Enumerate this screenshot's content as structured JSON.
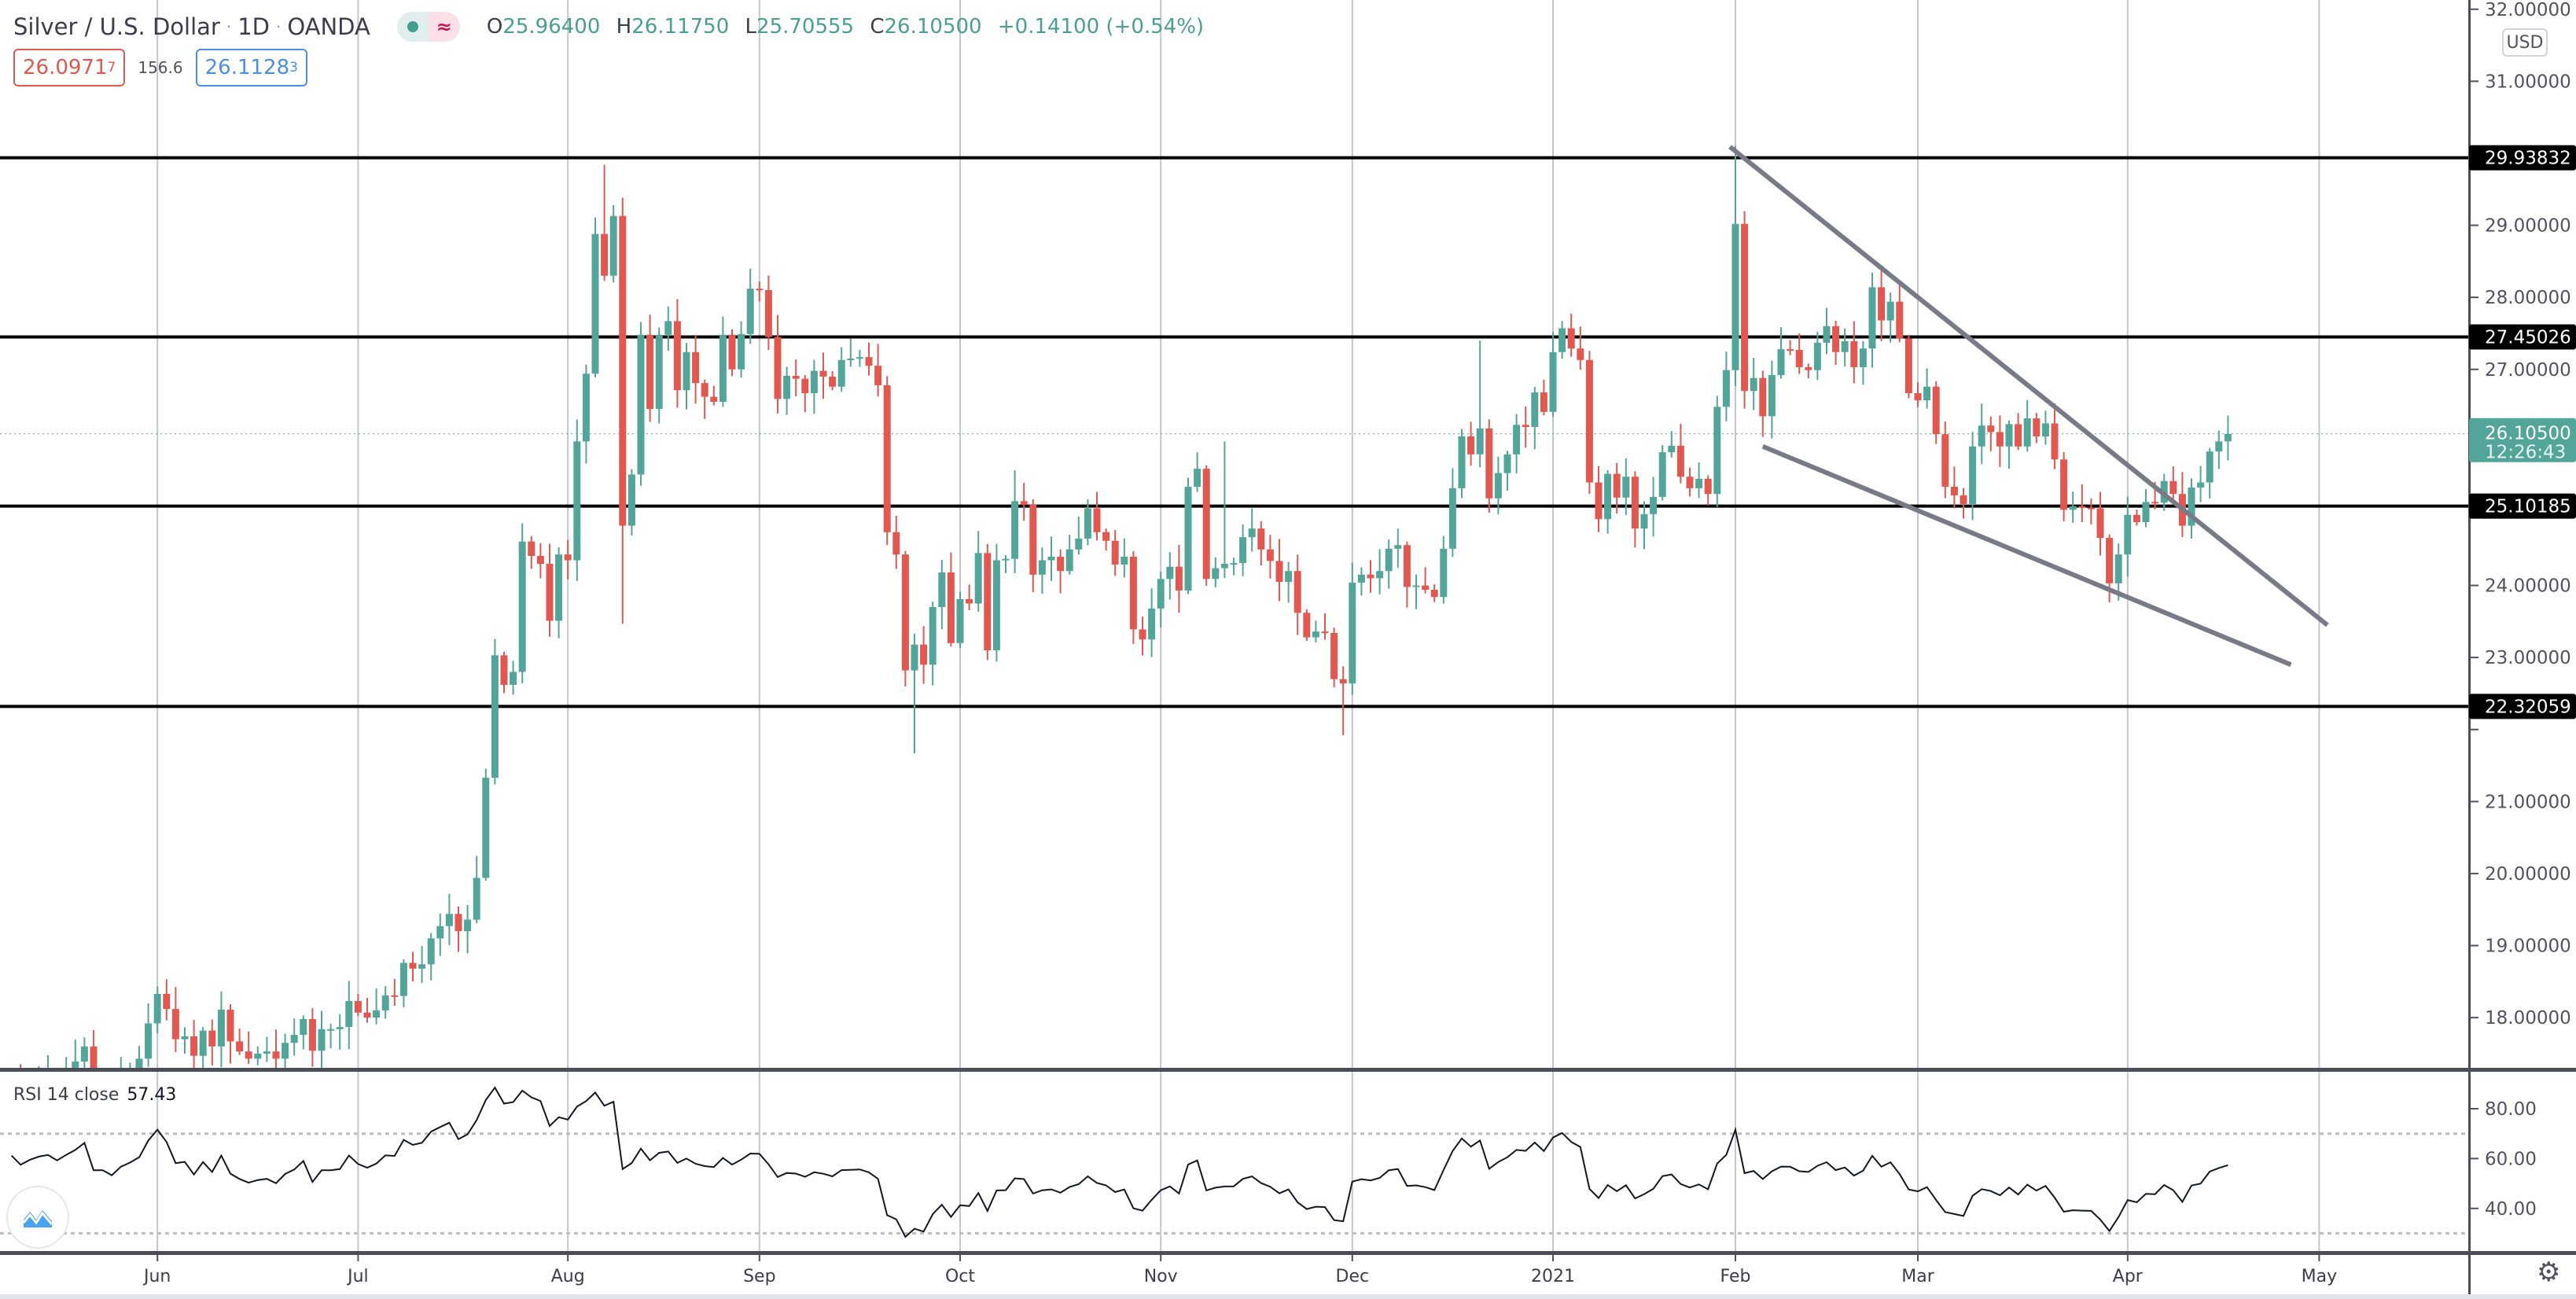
{
  "header": {
    "title": "Silver / U.S. Dollar",
    "interval": "1D",
    "source": "OANDA",
    "separator": "·",
    "status_glyph": "≈",
    "o_label": "O",
    "o": "25.96400",
    "h_label": "H",
    "h": "26.11750",
    "l_label": "L",
    "l": "25.70555",
    "c_label": "C",
    "c": "26.10500",
    "change": "+0.14100 (+0.54%)"
  },
  "quote": {
    "sell_main": "26.0971",
    "sell_pip": "7",
    "spread": "156.6",
    "buy_main": "26.1128",
    "buy_pip": "3"
  },
  "price_axis": {
    "currency": "USD",
    "ticks": [
      18,
      19,
      20,
      21,
      22,
      23,
      24,
      25,
      26,
      27,
      28,
      29,
      30,
      31,
      32
    ],
    "levels": [
      {
        "value": 29.93832,
        "label": "29.93832"
      },
      {
        "value": 27.45026,
        "label": "27.45026"
      },
      {
        "value": 25.10185,
        "label": "25.10185"
      },
      {
        "value": 22.32059,
        "label": "22.32059"
      }
    ],
    "current": {
      "value": 26.105,
      "price": "26.10500",
      "countdown": "12:26:43"
    }
  },
  "time_axis": [
    {
      "label": "Jun",
      "bar": 17
    },
    {
      "label": "Jul",
      "bar": 39
    },
    {
      "label": "Aug",
      "bar": 62
    },
    {
      "label": "Sep",
      "bar": 83
    },
    {
      "label": "Oct",
      "bar": 105
    },
    {
      "label": "Nov",
      "bar": 127
    },
    {
      "label": "Dec",
      "bar": 148
    },
    {
      "label": "2021",
      "bar": 170
    },
    {
      "label": "Feb",
      "bar": 190
    },
    {
      "label": "Mar",
      "bar": 210
    },
    {
      "label": "Apr",
      "bar": 233
    },
    {
      "label": "May",
      "bar": 254
    }
  ],
  "rsi": {
    "title": "RSI 14 close",
    "value": "57.43",
    "ticks": [
      {
        "v": 80,
        "label": "80.00"
      },
      {
        "v": 60,
        "label": "60.00"
      },
      {
        "v": 40,
        "label": "40.00"
      }
    ],
    "upper": 70,
    "lower": 30
  },
  "colors": {
    "up": "#53a599",
    "down": "#e0584f",
    "level": "#000000",
    "trend": "#787b86",
    "grid": "#c3c6cf"
  },
  "chart_data": {
    "type": "candlestick",
    "title": "Silver / U.S. Dollar · 1D · OANDA",
    "ylim": [
      17,
      32
    ],
    "closes": [
      17.0,
      17.1,
      16.9,
      17.05,
      17.15,
      17.2,
      17.1,
      17.25,
      17.39,
      17.6,
      17.1,
      17.1,
      17.0,
      17.2,
      17.3,
      17.43,
      17.92,
      18.33,
      18.12,
      17.7,
      17.74,
      17.47,
      17.82,
      17.6,
      18.11,
      17.67,
      17.53,
      17.43,
      17.5,
      17.53,
      17.43,
      17.65,
      17.76,
      17.98,
      17.54,
      17.84,
      17.84,
      17.87,
      18.23,
      18.07,
      18.0,
      18.1,
      18.31,
      18.3,
      18.76,
      18.68,
      18.74,
      19.1,
      19.27,
      19.44,
      19.2,
      19.36,
      19.94,
      21.33,
      23.03,
      22.62,
      22.8,
      24.61,
      24.41,
      24.3,
      23.51,
      24.43,
      24.35,
      26.0,
      26.94,
      28.88,
      28.3,
      29.13,
      24.83,
      25.54,
      27.48,
      26.45,
      27.48,
      27.67,
      26.71,
      27.24,
      26.81,
      26.62,
      26.55,
      27.48,
      27.0,
      27.49,
      28.12,
      28.1,
      27.45,
      26.59,
      26.91,
      26.87,
      26.67,
      26.98,
      26.9,
      26.76,
      27.13,
      27.15,
      27.17,
      27.05,
      26.78,
      24.74,
      24.43,
      22.82,
      23.18,
      22.9,
      23.7,
      24.18,
      23.2,
      23.81,
      23.75,
      24.45,
      23.1,
      24.35,
      24.37,
      25.17,
      25.12,
      24.15,
      24.35,
      24.4,
      24.2,
      24.5,
      24.65,
      25.07,
      24.74,
      24.62,
      24.29,
      24.4,
      23.39,
      23.25,
      23.68,
      24.09,
      24.26,
      23.93,
      25.37,
      25.62,
      24.09,
      24.24,
      24.3,
      24.31,
      24.67,
      24.79,
      24.5,
      24.34,
      24.05,
      24.2,
      23.62,
      23.28,
      23.36,
      23.34,
      22.7,
      22.64,
      24.04,
      24.15,
      24.1,
      24.2,
      24.51,
      24.56,
      23.98,
      24.0,
      23.94,
      23.84,
      24.51,
      25.35,
      26.07,
      25.82,
      26.18,
      25.21,
      25.56,
      25.82,
      26.23,
      26.2,
      26.68,
      26.41,
      27.24,
      27.57,
      27.29,
      27.13,
      25.43,
      24.92,
      25.55,
      25.22,
      25.51,
      24.79,
      24.99,
      25.23,
      25.85,
      25.94,
      25.51,
      25.35,
      25.48,
      25.27,
      26.48,
      26.99,
      29.02,
      26.7,
      26.88,
      26.35,
      26.92,
      27.28,
      27.27,
      27.03,
      26.99,
      27.37,
      27.6,
      27.24,
      27.39,
      27.03,
      27.29,
      28.14,
      27.68,
      27.94,
      27.43,
      26.67,
      26.57,
      26.76,
      26.1,
      25.37,
      25.25,
      25.13,
      25.93,
      26.22,
      26.13,
      25.93,
      26.24,
      25.93,
      26.32,
      26.07,
      26.25,
      25.75,
      25.05,
      25.1,
      25.08,
      25.07,
      24.66,
      24.03,
      24.43,
      24.98,
      24.88,
      25.16,
      25.15,
      25.45,
      25.27,
      24.83,
      25.36,
      25.43,
      25.86,
      26.0,
      26.105
    ],
    "high_overrides": {
      "66": 29.84,
      "190": 30.1,
      "162": 27.4,
      "134": 26.0,
      "111": 25.6
    },
    "low_overrides": {
      "68": 23.47,
      "100": 21.67,
      "147": 21.92,
      "232": 23.79,
      "53": 19.9
    },
    "trendlines": [
      {
        "from": {
          "bar": 189.4,
          "price": 30.09
        },
        "to": {
          "bar": 254.9,
          "price": 23.45
        }
      },
      {
        "from": {
          "bar": 193.0,
          "price": 25.93
        },
        "to": {
          "bar": 250.9,
          "price": 22.9
        }
      }
    ]
  }
}
